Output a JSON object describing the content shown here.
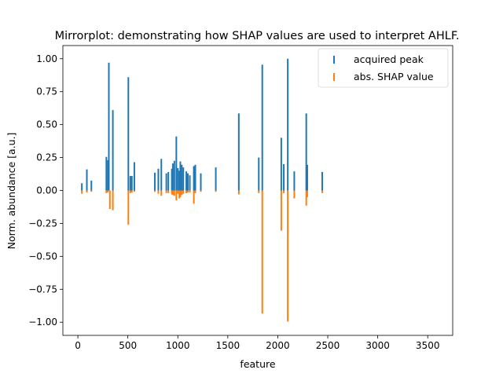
{
  "chart_data": {
    "type": "bar",
    "title": "Mirrorplot: demonstrating how SHAP values are used to interpret AHLF.",
    "xlabel": "feature",
    "ylabel": "Norm. abundance [a.u.]",
    "xlim": [
      -150,
      3750
    ],
    "ylim": [
      -1.1,
      1.1
    ],
    "xticks": [
      0,
      500,
      1000,
      1500,
      2000,
      2500,
      3000,
      3500
    ],
    "xtick_labels": [
      "0",
      "500",
      "1000",
      "1500",
      "2000",
      "2500",
      "3000",
      "3500"
    ],
    "yticks": [
      1.0,
      0.75,
      0.5,
      0.25,
      0.0,
      -0.25,
      -0.5,
      -0.75,
      -1.0
    ],
    "ytick_labels": [
      "1.00",
      "0.75",
      "0.50",
      "0.25",
      "0.00",
      "−0.25",
      "−0.50",
      "−0.75",
      "−1.00"
    ],
    "grid": false,
    "legend_position": "top-right",
    "series": [
      {
        "name": "acquired peak",
        "color": "#1f77b4",
        "points": [
          [
            40,
            0.055
          ],
          [
            90,
            0.16
          ],
          [
            135,
            0.075
          ],
          [
            285,
            0.255
          ],
          [
            300,
            0.23
          ],
          [
            310,
            0.97
          ],
          [
            350,
            0.61
          ],
          [
            505,
            0.86
          ],
          [
            525,
            0.11
          ],
          [
            540,
            0.11
          ],
          [
            565,
            0.215
          ],
          [
            770,
            0.135
          ],
          [
            805,
            0.165
          ],
          [
            835,
            0.24
          ],
          [
            885,
            0.13
          ],
          [
            905,
            0.14
          ],
          [
            940,
            0.165
          ],
          [
            950,
            0.205
          ],
          [
            965,
            0.225
          ],
          [
            985,
            0.41
          ],
          [
            1000,
            0.17
          ],
          [
            1015,
            0.15
          ],
          [
            1025,
            0.22
          ],
          [
            1040,
            0.195
          ],
          [
            1055,
            0.175
          ],
          [
            1085,
            0.145
          ],
          [
            1100,
            0.13
          ],
          [
            1120,
            0.115
          ],
          [
            1160,
            0.185
          ],
          [
            1175,
            0.195
          ],
          [
            1230,
            0.13
          ],
          [
            1380,
            0.175
          ],
          [
            1610,
            0.585
          ],
          [
            1810,
            0.25
          ],
          [
            1845,
            0.955
          ],
          [
            2035,
            0.4
          ],
          [
            2060,
            0.2
          ],
          [
            2100,
            1.0
          ],
          [
            2165,
            0.145
          ],
          [
            2285,
            0.585
          ],
          [
            2295,
            0.195
          ],
          [
            2445,
            0.14
          ]
        ]
      },
      {
        "name": "abs. SHAP value",
        "color": "#ff7f0e",
        "points": [
          [
            40,
            -0.025
          ],
          [
            90,
            -0.015
          ],
          [
            135,
            -0.01
          ],
          [
            285,
            -0.02
          ],
          [
            300,
            -0.015
          ],
          [
            320,
            -0.14
          ],
          [
            350,
            -0.15
          ],
          [
            505,
            -0.26
          ],
          [
            525,
            -0.02
          ],
          [
            540,
            -0.015
          ],
          [
            565,
            -0.01
          ],
          [
            770,
            -0.01
          ],
          [
            805,
            -0.025
          ],
          [
            835,
            -0.04
          ],
          [
            885,
            -0.02
          ],
          [
            905,
            -0.02
          ],
          [
            940,
            -0.03
          ],
          [
            950,
            -0.035
          ],
          [
            965,
            -0.04
          ],
          [
            985,
            -0.075
          ],
          [
            1000,
            -0.025
          ],
          [
            1015,
            -0.06
          ],
          [
            1025,
            -0.05
          ],
          [
            1040,
            -0.035
          ],
          [
            1055,
            -0.025
          ],
          [
            1085,
            -0.02
          ],
          [
            1100,
            -0.015
          ],
          [
            1120,
            -0.015
          ],
          [
            1160,
            -0.1
          ],
          [
            1175,
            -0.02
          ],
          [
            1230,
            -0.01
          ],
          [
            1380,
            -0.01
          ],
          [
            1610,
            -0.03
          ],
          [
            1810,
            -0.02
          ],
          [
            1845,
            -0.935
          ],
          [
            2035,
            -0.305
          ],
          [
            2060,
            -0.02
          ],
          [
            2100,
            -0.995
          ],
          [
            2165,
            -0.06
          ],
          [
            2285,
            -0.115
          ],
          [
            2295,
            -0.05
          ],
          [
            2445,
            -0.02
          ]
        ]
      }
    ]
  }
}
